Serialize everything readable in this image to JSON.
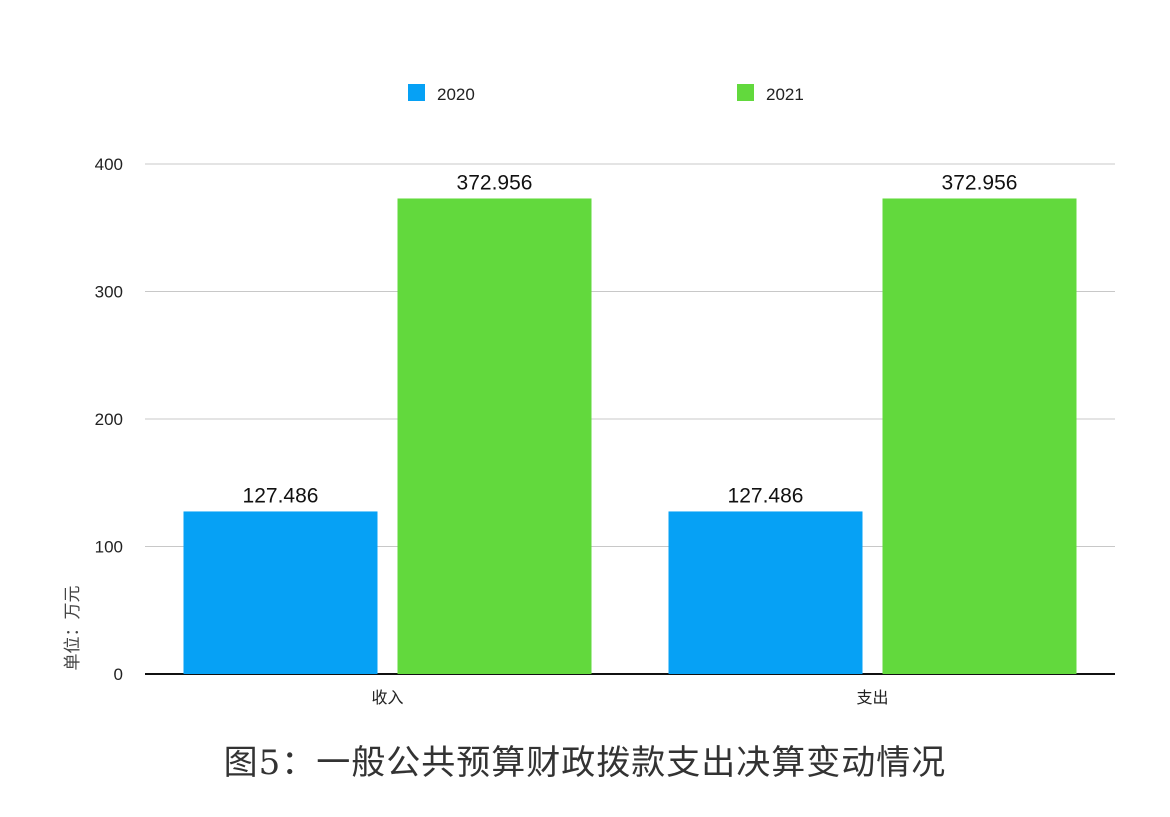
{
  "chart_data": {
    "type": "bar",
    "categories": [
      "收入",
      "支出"
    ],
    "series": [
      {
        "name": "2020",
        "values": [
          127.486,
          127.486
        ],
        "color": "#06A1F5"
      },
      {
        "name": "2021",
        "values": [
          372.956,
          372.956
        ],
        "color": "#62D93D"
      }
    ],
    "ylabel": "单位：万元",
    "ylim": [
      0,
      400
    ],
    "yticks": [
      0,
      100,
      200,
      300,
      400
    ],
    "data_labels": [
      [
        "127.486",
        "127.486"
      ],
      [
        "372.956",
        "372.956"
      ]
    ],
    "grid": true,
    "legend_position": "top"
  },
  "caption": "图5：一般公共预算财政拨款支出决算变动情况"
}
